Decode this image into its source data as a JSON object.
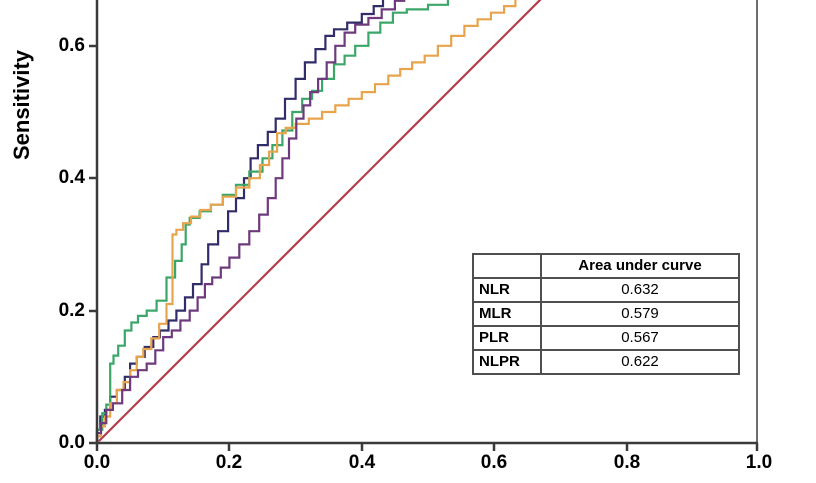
{
  "chart_data": {
    "type": "line",
    "subtype": "roc-curves",
    "ylabel": "Sensitivity",
    "xlabel": "",
    "x_tick_labels": [
      "0.0",
      "0.2",
      "0.4",
      "0.6",
      "0.8",
      "1.0"
    ],
    "y_tick_labels": [
      "0.0",
      "0.2",
      "0.4",
      "0.6"
    ],
    "xlim": [
      0.0,
      1.0
    ],
    "ylim_visible": [
      0.0,
      0.67
    ],
    "grid": false,
    "legend_position": "none (AUC table inset bottom-right)",
    "reference_line": {
      "name": "reference-diagonal",
      "color": "#b23c4b",
      "step": false,
      "points": [
        [
          0,
          0
        ],
        [
          0.69,
          0.69
        ]
      ]
    },
    "series": [
      {
        "name": "NLR",
        "auc": 0.632,
        "color": "#312d69",
        "step": true,
        "points": [
          [
            0,
            0
          ],
          [
            0.005,
            0.02
          ],
          [
            0.012,
            0.04
          ],
          [
            0.02,
            0.05
          ],
          [
            0.03,
            0.07
          ],
          [
            0.042,
            0.08
          ],
          [
            0.05,
            0.1
          ],
          [
            0.06,
            0.12
          ],
          [
            0.072,
            0.13
          ],
          [
            0.085,
            0.145
          ],
          [
            0.095,
            0.16
          ],
          [
            0.108,
            0.17
          ],
          [
            0.12,
            0.185
          ],
          [
            0.133,
            0.2
          ],
          [
            0.145,
            0.22
          ],
          [
            0.158,
            0.24
          ],
          [
            0.168,
            0.27
          ],
          [
            0.183,
            0.3
          ],
          [
            0.198,
            0.32
          ],
          [
            0.21,
            0.35
          ],
          [
            0.222,
            0.37
          ],
          [
            0.232,
            0.4
          ],
          [
            0.243,
            0.43
          ],
          [
            0.258,
            0.45
          ],
          [
            0.27,
            0.47
          ],
          [
            0.284,
            0.49
          ],
          [
            0.3,
            0.52
          ],
          [
            0.314,
            0.55
          ],
          [
            0.33,
            0.575
          ],
          [
            0.345,
            0.595
          ],
          [
            0.358,
            0.615
          ],
          [
            0.378,
            0.625
          ],
          [
            0.4,
            0.635
          ],
          [
            0.418,
            0.648
          ],
          [
            0.432,
            0.66
          ],
          [
            0.442,
            0.71
          ]
        ]
      },
      {
        "name": "MLR",
        "auc": 0.579,
        "color": "#3aa768",
        "step": true,
        "points": [
          [
            0,
            0
          ],
          [
            0.008,
            0.02
          ],
          [
            0.014,
            0.045
          ],
          [
            0.02,
            0.058
          ],
          [
            0.025,
            0.12
          ],
          [
            0.032,
            0.132
          ],
          [
            0.042,
            0.147
          ],
          [
            0.052,
            0.17
          ],
          [
            0.062,
            0.182
          ],
          [
            0.075,
            0.192
          ],
          [
            0.09,
            0.2
          ],
          [
            0.105,
            0.215
          ],
          [
            0.118,
            0.25
          ],
          [
            0.128,
            0.275
          ],
          [
            0.134,
            0.3
          ],
          [
            0.14,
            0.33
          ],
          [
            0.155,
            0.34
          ],
          [
            0.172,
            0.35
          ],
          [
            0.19,
            0.36
          ],
          [
            0.21,
            0.375
          ],
          [
            0.23,
            0.39
          ],
          [
            0.25,
            0.41
          ],
          [
            0.265,
            0.43
          ],
          [
            0.28,
            0.45
          ],
          [
            0.295,
            0.472
          ],
          [
            0.31,
            0.5
          ],
          [
            0.325,
            0.52
          ],
          [
            0.34,
            0.532
          ],
          [
            0.358,
            0.55
          ],
          [
            0.374,
            0.572
          ],
          [
            0.39,
            0.585
          ],
          [
            0.41,
            0.6
          ],
          [
            0.428,
            0.62
          ],
          [
            0.447,
            0.635
          ],
          [
            0.468,
            0.65
          ],
          [
            0.5,
            0.655
          ],
          [
            0.53,
            0.662
          ],
          [
            0.548,
            0.672
          ],
          [
            0.558,
            0.71
          ]
        ]
      },
      {
        "name": "PLR",
        "auc": 0.567,
        "color": "#e8a44c",
        "step": true,
        "points": [
          [
            0,
            0
          ],
          [
            0.006,
            0.01
          ],
          [
            0.012,
            0.025
          ],
          [
            0.02,
            0.04
          ],
          [
            0.03,
            0.06
          ],
          [
            0.04,
            0.08
          ],
          [
            0.05,
            0.092
          ],
          [
            0.06,
            0.11
          ],
          [
            0.07,
            0.13
          ],
          [
            0.082,
            0.142
          ],
          [
            0.094,
            0.158
          ],
          [
            0.105,
            0.18
          ],
          [
            0.114,
            0.21
          ],
          [
            0.12,
            0.315
          ],
          [
            0.13,
            0.322
          ],
          [
            0.142,
            0.332
          ],
          [
            0.156,
            0.342
          ],
          [
            0.172,
            0.352
          ],
          [
            0.19,
            0.36
          ],
          [
            0.21,
            0.372
          ],
          [
            0.23,
            0.386
          ],
          [
            0.246,
            0.4
          ],
          [
            0.26,
            0.42
          ],
          [
            0.272,
            0.44
          ],
          [
            0.285,
            0.468
          ],
          [
            0.3,
            0.476
          ],
          [
            0.32,
            0.482
          ],
          [
            0.34,
            0.49
          ],
          [
            0.36,
            0.5
          ],
          [
            0.38,
            0.51
          ],
          [
            0.4,
            0.52
          ],
          [
            0.42,
            0.53
          ],
          [
            0.44,
            0.542
          ],
          [
            0.458,
            0.555
          ],
          [
            0.476,
            0.565
          ],
          [
            0.495,
            0.575
          ],
          [
            0.515,
            0.585
          ],
          [
            0.535,
            0.6
          ],
          [
            0.555,
            0.615
          ],
          [
            0.575,
            0.63
          ],
          [
            0.595,
            0.64
          ],
          [
            0.615,
            0.65
          ],
          [
            0.632,
            0.66
          ],
          [
            0.645,
            0.71
          ]
        ]
      },
      {
        "name": "NLPR",
        "auc": 0.622,
        "color": "#6f3a7d",
        "step": true,
        "points": [
          [
            0,
            0
          ],
          [
            0.006,
            0.015
          ],
          [
            0.014,
            0.03
          ],
          [
            0.024,
            0.05
          ],
          [
            0.038,
            0.06
          ],
          [
            0.05,
            0.08
          ],
          [
            0.062,
            0.1
          ],
          [
            0.075,
            0.11
          ],
          [
            0.088,
            0.12
          ],
          [
            0.1,
            0.14
          ],
          [
            0.113,
            0.16
          ],
          [
            0.126,
            0.17
          ],
          [
            0.14,
            0.185
          ],
          [
            0.152,
            0.2
          ],
          [
            0.163,
            0.22
          ],
          [
            0.174,
            0.24
          ],
          [
            0.187,
            0.25
          ],
          [
            0.2,
            0.265
          ],
          [
            0.215,
            0.28
          ],
          [
            0.23,
            0.3
          ],
          [
            0.245,
            0.32
          ],
          [
            0.258,
            0.345
          ],
          [
            0.27,
            0.37
          ],
          [
            0.28,
            0.4
          ],
          [
            0.29,
            0.43
          ],
          [
            0.301,
            0.46
          ],
          [
            0.312,
            0.49
          ],
          [
            0.322,
            0.51
          ],
          [
            0.334,
            0.53
          ],
          [
            0.347,
            0.55
          ],
          [
            0.36,
            0.575
          ],
          [
            0.374,
            0.6
          ],
          [
            0.39,
            0.62
          ],
          [
            0.41,
            0.632
          ],
          [
            0.43,
            0.642
          ],
          [
            0.45,
            0.655
          ],
          [
            0.464,
            0.668
          ],
          [
            0.474,
            0.71
          ]
        ]
      }
    ]
  },
  "axis": {
    "ylabel": "Sensitivity",
    "yticks": [
      "0.0",
      "0.2",
      "0.4",
      "0.6"
    ],
    "xticks": [
      "0.0",
      "0.2",
      "0.4",
      "0.6",
      "0.8",
      "1.0"
    ]
  },
  "auc_table": {
    "corner": "",
    "header": "Area under curve",
    "rows": [
      {
        "label": "NLR",
        "value": "0.632"
      },
      {
        "label": "MLR",
        "value": "0.579"
      },
      {
        "label": "PLR",
        "value": "0.567"
      },
      {
        "label": "NLPR",
        "value": "0.622"
      }
    ]
  },
  "colors": {
    "nlr": "#312d69",
    "mlr": "#3aa768",
    "plr": "#e8a44c",
    "nlpr": "#6f3a7d",
    "reference": "#b23c4b",
    "axis": "#3a3a3a",
    "right_border": "#6e6e6e"
  }
}
